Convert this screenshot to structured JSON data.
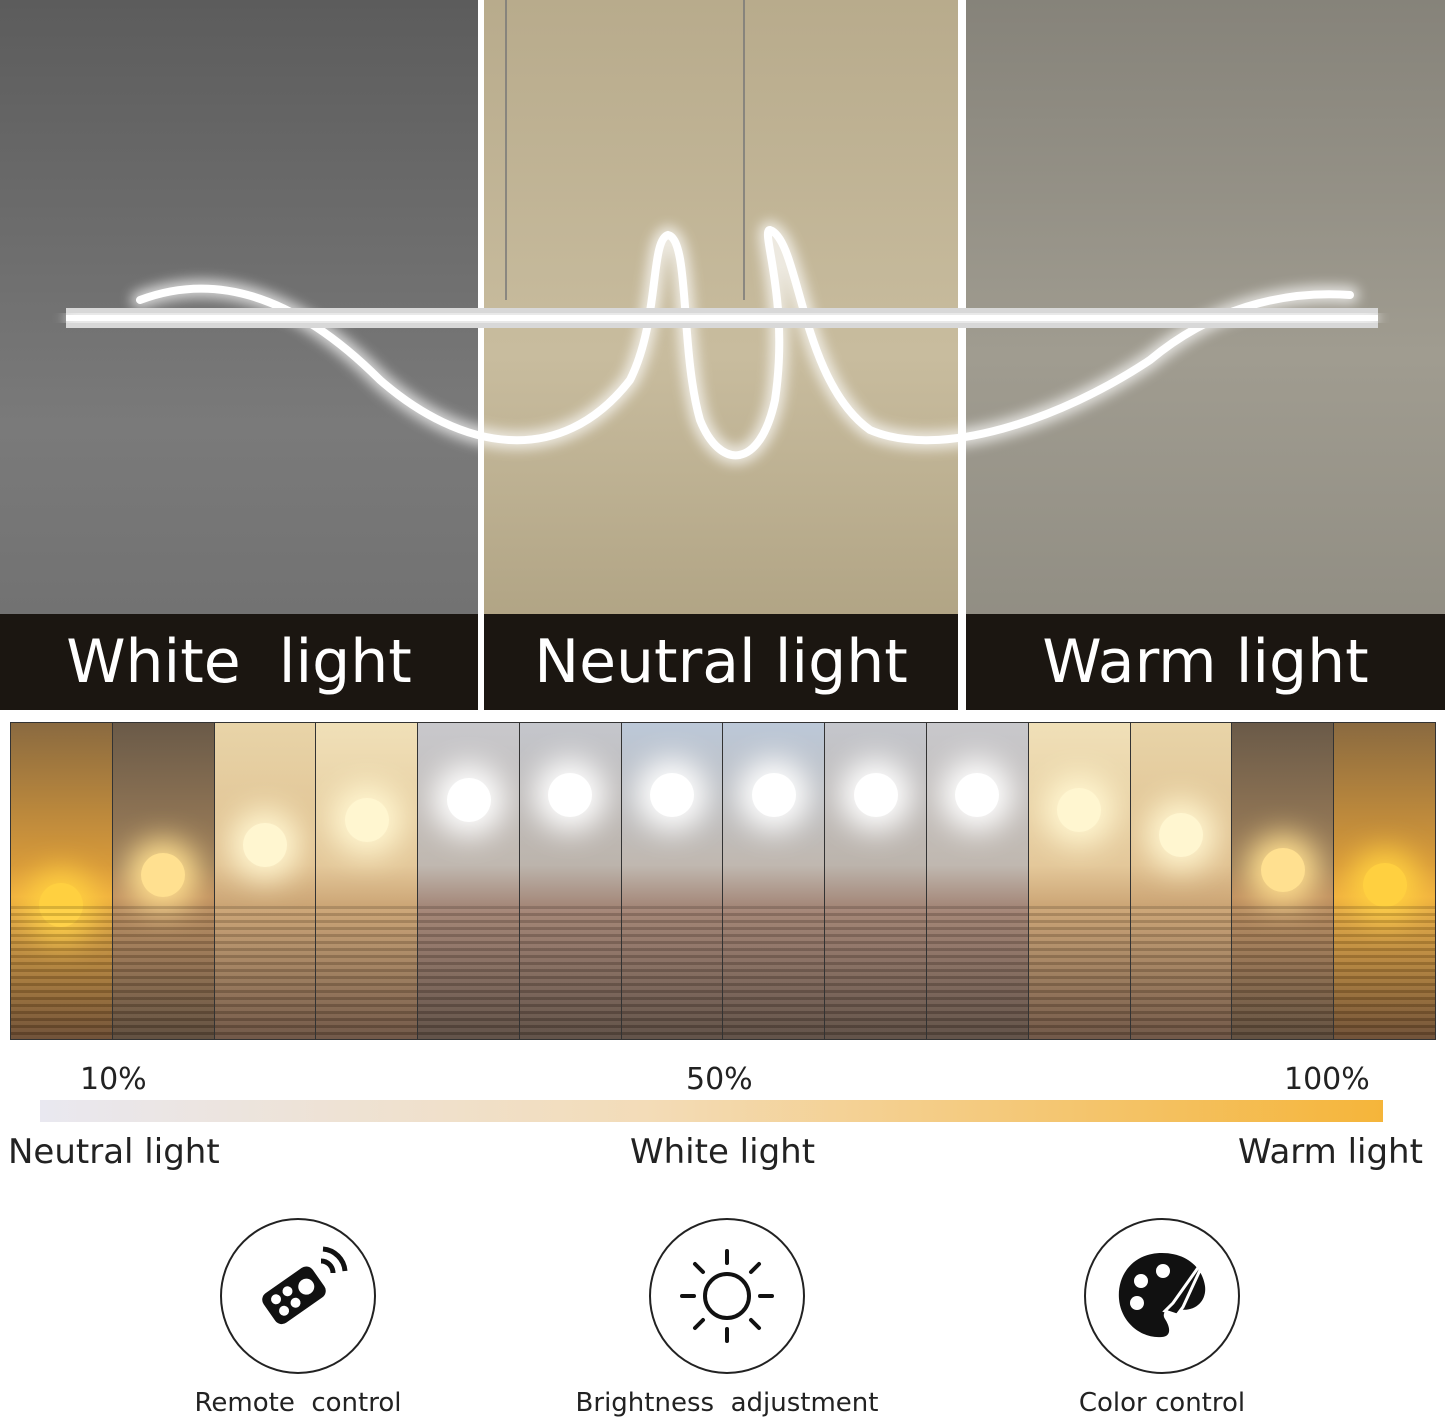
{
  "panels": [
    {
      "label": "White  light"
    },
    {
      "label": "Neutral light"
    },
    {
      "label": "Warm light"
    }
  ],
  "percent_labels": [
    "10%",
    "50%",
    "100%"
  ],
  "temperature_labels": [
    "Neutral light",
    "White light",
    "Warm light"
  ],
  "gradient_colors": [
    "#e9e8f0",
    "#f3dcb8",
    "#f5b53a"
  ],
  "features": [
    {
      "icon": "remote-control-icon",
      "label": "Remote  control"
    },
    {
      "icon": "sun-brightness-icon",
      "label": "Brightness  adjustment"
    },
    {
      "icon": "palette-icon",
      "label": "Color control"
    }
  ]
}
